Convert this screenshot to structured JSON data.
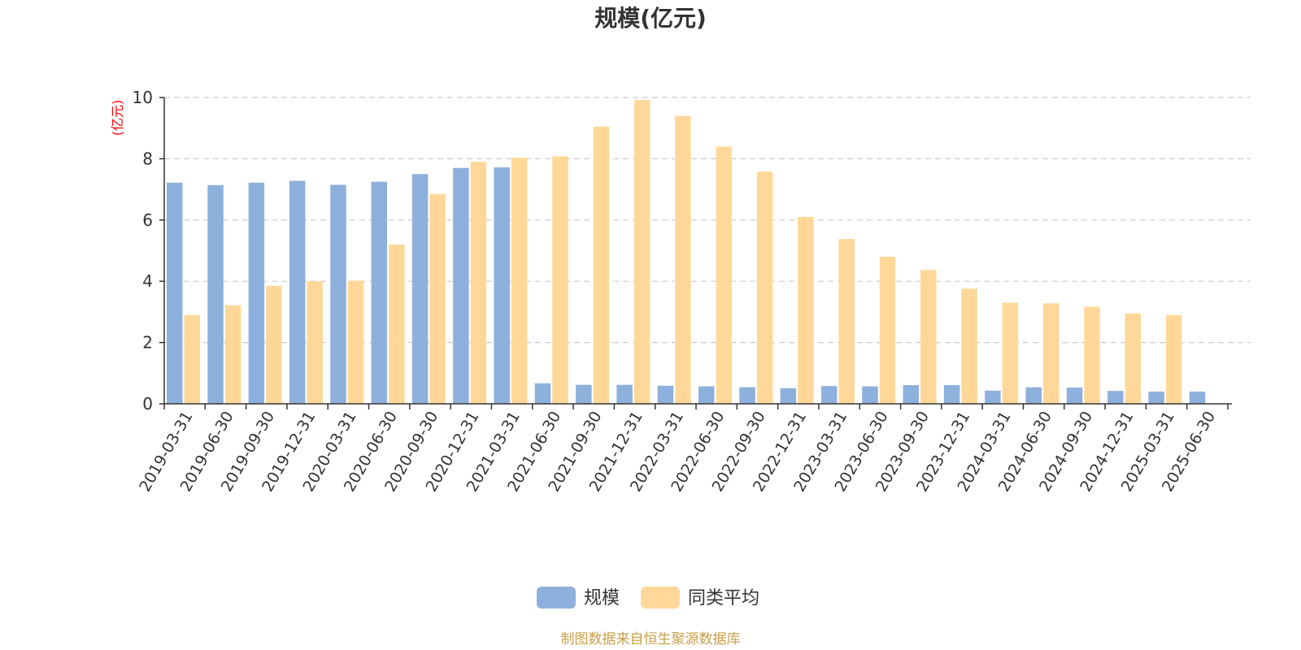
{
  "chart_data": {
    "type": "bar",
    "title": "规模(亿元)",
    "ylabel": "(亿元)",
    "ylim": [
      0,
      10
    ],
    "yticks": [
      0,
      2,
      4,
      6,
      8,
      10
    ],
    "grid": true,
    "legend_position": "bottom-center",
    "source_note": "制图数据来自恒生聚源数据库",
    "categories": [
      "2019-03-31",
      "2019-06-30",
      "2019-09-30",
      "2019-12-31",
      "2020-03-31",
      "2020-06-30",
      "2020-09-30",
      "2020-12-31",
      "2021-03-31",
      "2021-06-30",
      "2021-09-30",
      "2021-12-31",
      "2022-03-31",
      "2022-06-30",
      "2022-09-30",
      "2022-12-31",
      "2023-03-31",
      "2023-06-30",
      "2023-09-30",
      "2023-12-31",
      "2024-03-31",
      "2024-06-30",
      "2024-09-30",
      "2024-12-31",
      "2025-03-31",
      "2025-06-30"
    ],
    "series": [
      {
        "name": "规模",
        "color": "#8eb0dc",
        "values": [
          7.22,
          7.14,
          7.22,
          7.28,
          7.15,
          7.25,
          7.5,
          7.7,
          7.72,
          0.67,
          0.62,
          0.62,
          0.59,
          0.57,
          0.54,
          0.51,
          0.58,
          0.57,
          0.61,
          0.61,
          0.43,
          0.54,
          0.53,
          0.42,
          0.4,
          0.4
        ]
      },
      {
        "name": "同类平均",
        "color": "#ffd899",
        "values": [
          2.9,
          3.22,
          3.85,
          4.0,
          4.02,
          5.2,
          6.85,
          7.9,
          8.03,
          8.08,
          9.05,
          9.92,
          9.4,
          8.4,
          7.58,
          6.1,
          5.38,
          4.8,
          4.37,
          3.76,
          3.3,
          3.28,
          3.17,
          2.95,
          2.9,
          null
        ]
      }
    ]
  }
}
